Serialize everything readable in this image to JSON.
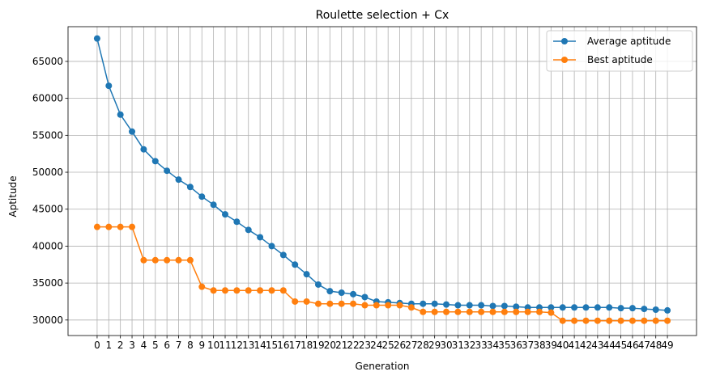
{
  "chart_data": {
    "type": "line",
    "title": "Roulette selection + Cx",
    "xlabel": "Generation",
    "ylabel": "Aptitude",
    "x": [
      0,
      1,
      2,
      3,
      4,
      5,
      6,
      7,
      8,
      9,
      10,
      11,
      12,
      13,
      14,
      15,
      16,
      17,
      18,
      19,
      20,
      21,
      22,
      23,
      24,
      25,
      26,
      27,
      28,
      29,
      30,
      31,
      32,
      33,
      34,
      35,
      36,
      37,
      38,
      39,
      40,
      41,
      42,
      43,
      44,
      45,
      46,
      47,
      48,
      49
    ],
    "xlim": [
      -2.5,
      51.5
    ],
    "ylim": [
      27900,
      69700
    ],
    "yticks": [
      30000,
      35000,
      40000,
      45000,
      50000,
      55000,
      60000,
      65000
    ],
    "grid": true,
    "legend_position": "top-right",
    "series": [
      {
        "name": "Average aptitude",
        "color": "#1f77b4",
        "values": [
          68100,
          61700,
          57800,
          55500,
          53100,
          51500,
          50200,
          49000,
          48000,
          46700,
          45600,
          44300,
          43300,
          42200,
          41200,
          40000,
          38800,
          37500,
          36200,
          34800,
          33900,
          33700,
          33500,
          33100,
          32500,
          32400,
          32300,
          32200,
          32200,
          32200,
          32100,
          32000,
          32000,
          32000,
          31900,
          31900,
          31800,
          31700,
          31700,
          31700,
          31700,
          31700,
          31700,
          31700,
          31700,
          31600,
          31600,
          31500,
          31400,
          31300
        ]
      },
      {
        "name": "Best aptitude",
        "color": "#ff7f0e",
        "values": [
          42600,
          42600,
          42600,
          42600,
          38100,
          38100,
          38100,
          38100,
          38100,
          34500,
          34000,
          34000,
          34000,
          34000,
          34000,
          34000,
          34000,
          32500,
          32500,
          32200,
          32200,
          32200,
          32200,
          32000,
          32000,
          32000,
          32000,
          31700,
          31100,
          31100,
          31100,
          31100,
          31100,
          31100,
          31100,
          31100,
          31100,
          31100,
          31100,
          31000,
          29900,
          29900,
          29900,
          29900,
          29900,
          29900,
          29900,
          29900,
          29900,
          29900
        ]
      }
    ]
  }
}
